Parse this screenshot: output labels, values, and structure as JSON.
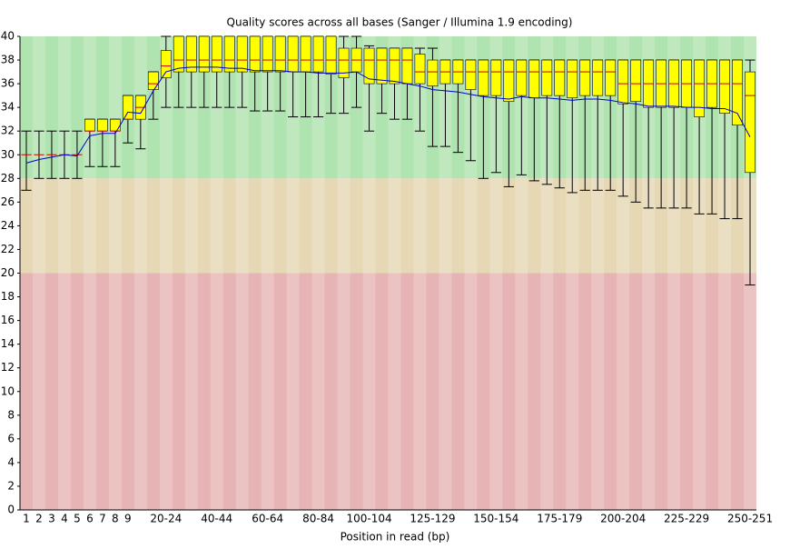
{
  "chart_data": {
    "type": "boxplot",
    "title": "Quality scores across all bases (Sanger / Illumina 1.9 encoding)",
    "x_label": "Position in read (bp)",
    "categories": [
      "1",
      "2",
      "3",
      "4",
      "5",
      "6",
      "7",
      "8",
      "9",
      null,
      null,
      "20-24",
      null,
      null,
      null,
      "40-44",
      null,
      null,
      null,
      "60-64",
      null,
      null,
      null,
      "80-84",
      null,
      null,
      null,
      "100-104",
      null,
      null,
      null,
      null,
      "125-129",
      null,
      null,
      null,
      null,
      "150-154",
      null,
      null,
      null,
      null,
      "175-179",
      null,
      null,
      null,
      null,
      "200-204",
      null,
      null,
      null,
      null,
      "225-229",
      null,
      null,
      null,
      null,
      "250-251"
    ],
    "whisker_low": [
      27,
      28,
      28,
      28,
      28,
      29,
      29,
      29,
      31,
      30.5,
      33,
      34,
      34,
      34,
      34,
      34,
      34,
      34,
      33.7,
      33.7,
      33.7,
      33.2,
      33.2,
      33.2,
      33.5,
      33.5,
      34,
      32,
      33.5,
      33,
      33,
      32,
      30.7,
      30.7,
      30.2,
      29.5,
      28,
      28.5,
      27.3,
      28.3,
      27.8,
      27.5,
      27.2,
      26.8,
      27,
      27,
      27,
      26.5,
      26,
      25.5,
      25.5,
      25.5,
      25.5,
      25,
      25,
      24.6,
      24.6,
      19
    ],
    "q1": [
      30,
      30,
      30,
      30,
      30,
      32,
      32,
      32,
      33,
      33,
      35.5,
      36.5,
      37,
      37,
      37,
      37,
      37,
      37,
      37,
      37,
      37,
      37,
      37,
      37,
      36.8,
      36.5,
      37,
      36,
      36,
      36,
      36,
      36,
      35.8,
      36,
      36,
      35.5,
      35,
      35,
      34.5,
      35,
      34.8,
      35,
      35,
      34.8,
      35,
      35,
      35,
      34.3,
      34.5,
      34,
      34,
      34,
      34,
      33.2,
      34,
      33.5,
      32.5,
      28.5
    ],
    "median": [
      30,
      30,
      30,
      30,
      30,
      32,
      32,
      32,
      33,
      34,
      36,
      37.5,
      38,
      38,
      38,
      38,
      38,
      38,
      38,
      38,
      38,
      38,
      38,
      38,
      38,
      38,
      38,
      38,
      38,
      38,
      38,
      37,
      37,
      37,
      37,
      37,
      37,
      37,
      37,
      37,
      37,
      37,
      37,
      37,
      37,
      37,
      37,
      36,
      36,
      36,
      36,
      36,
      36,
      36,
      36,
      36,
      36,
      35
    ],
    "q3": [
      30,
      30,
      30,
      30,
      30,
      33,
      33,
      33,
      35,
      35,
      37,
      38.8,
      40,
      40,
      40,
      40,
      40,
      40,
      40,
      40,
      40,
      40,
      40,
      40,
      40,
      39,
      39,
      39,
      39,
      39,
      39,
      38.5,
      38,
      38,
      38,
      38,
      38,
      38,
      38,
      38,
      38,
      38,
      38,
      38,
      38,
      38,
      38,
      38,
      38,
      38,
      38,
      38,
      38,
      38,
      38,
      38,
      38,
      37
    ],
    "whisker_high": [
      32,
      32,
      32,
      32,
      32,
      33,
      33,
      33,
      35,
      35,
      37,
      40,
      40,
      40,
      40,
      40,
      40,
      40,
      40,
      40,
      40,
      40,
      40,
      40,
      40,
      40,
      40,
      39.2,
      39,
      39,
      39,
      39,
      39,
      38,
      38,
      38,
      38,
      38,
      38,
      38,
      38,
      38,
      38,
      38,
      38,
      38,
      38,
      38,
      38,
      38,
      38,
      38,
      38,
      38,
      38,
      38,
      38,
      38
    ],
    "mean": [
      29.3,
      29.6,
      29.8,
      30,
      29.9,
      31.6,
      31.8,
      31.8,
      33.6,
      33.5,
      35.4,
      37,
      37.3,
      37.4,
      37.4,
      37.4,
      37.3,
      37.3,
      37.1,
      37.1,
      37.1,
      37,
      37,
      36.9,
      36.9,
      36.9,
      37,
      36.4,
      36.3,
      36.2,
      36,
      35.8,
      35.5,
      35.4,
      35.3,
      35.1,
      34.9,
      34.8,
      34.7,
      34.9,
      34.8,
      34.8,
      34.7,
      34.6,
      34.7,
      34.7,
      34.6,
      34.4,
      34.3,
      34.1,
      34.1,
      34.1,
      34,
      34,
      33.9,
      33.9,
      33.5,
      31.5
    ],
    "box_color": "#ffff00",
    "median_color": "#cc0000",
    "mean_color": "#0000cc",
    "bands": [
      {
        "from": 28,
        "to": 40,
        "color": "#afe3af"
      },
      {
        "from": 20,
        "to": 28,
        "color": "#e6d8b4"
      },
      {
        "from": 0,
        "to": 20,
        "color": "#e6b4b4"
      }
    ],
    "ylim": [
      0,
      40
    ],
    "yticks": [
      0,
      2,
      4,
      6,
      8,
      10,
      12,
      14,
      16,
      18,
      20,
      22,
      24,
      26,
      28,
      30,
      32,
      34,
      36,
      38,
      40
    ]
  }
}
